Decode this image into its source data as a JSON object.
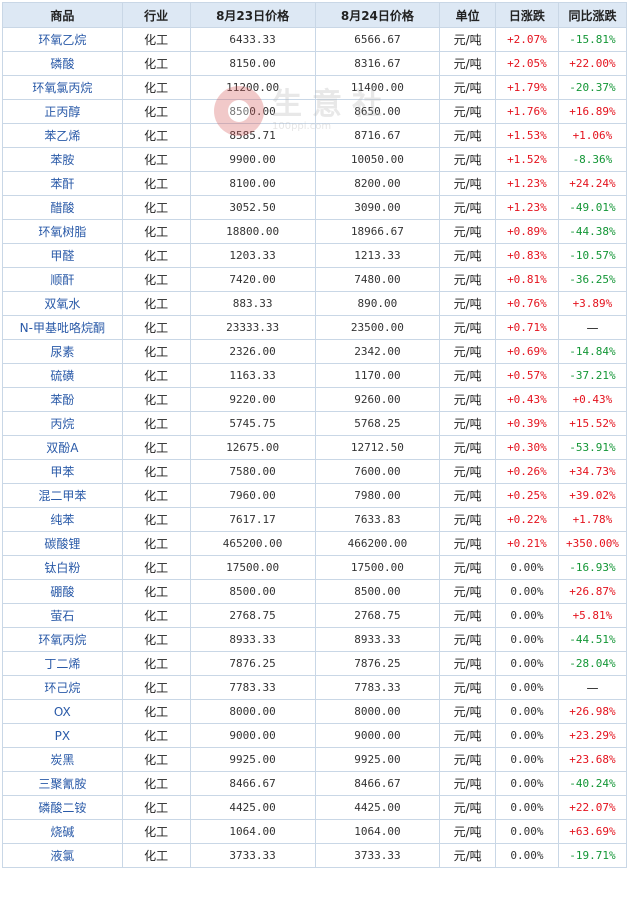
{
  "table": {
    "headers": [
      "商品",
      "行业",
      "8月23日价格",
      "8月24日价格",
      "单位",
      "日涨跌",
      "同比涨跌"
    ],
    "rows": [
      {
        "name": "环氧乙烷",
        "industry": "化工",
        "p1": "6433.33",
        "p2": "6566.67",
        "unit": "元/吨",
        "day": "+2.07%",
        "yoy": "-15.81%"
      },
      {
        "name": "磷酸",
        "industry": "化工",
        "p1": "8150.00",
        "p2": "8316.67",
        "unit": "元/吨",
        "day": "+2.05%",
        "yoy": "+22.00%"
      },
      {
        "name": "环氧氯丙烷",
        "industry": "化工",
        "p1": "11200.00",
        "p2": "11400.00",
        "unit": "元/吨",
        "day": "+1.79%",
        "yoy": "-20.37%"
      },
      {
        "name": "正丙醇",
        "industry": "化工",
        "p1": "8500.00",
        "p2": "8650.00",
        "unit": "元/吨",
        "day": "+1.76%",
        "yoy": "+16.89%"
      },
      {
        "name": "苯乙烯",
        "industry": "化工",
        "p1": "8585.71",
        "p2": "8716.67",
        "unit": "元/吨",
        "day": "+1.53%",
        "yoy": "+1.06%"
      },
      {
        "name": "苯胺",
        "industry": "化工",
        "p1": "9900.00",
        "p2": "10050.00",
        "unit": "元/吨",
        "day": "+1.52%",
        "yoy": "-8.36%"
      },
      {
        "name": "苯酐",
        "industry": "化工",
        "p1": "8100.00",
        "p2": "8200.00",
        "unit": "元/吨",
        "day": "+1.23%",
        "yoy": "+24.24%"
      },
      {
        "name": "醋酸",
        "industry": "化工",
        "p1": "3052.50",
        "p2": "3090.00",
        "unit": "元/吨",
        "day": "+1.23%",
        "yoy": "-49.01%"
      },
      {
        "name": "环氧树脂",
        "industry": "化工",
        "p1": "18800.00",
        "p2": "18966.67",
        "unit": "元/吨",
        "day": "+0.89%",
        "yoy": "-44.38%"
      },
      {
        "name": "甲醛",
        "industry": "化工",
        "p1": "1203.33",
        "p2": "1213.33",
        "unit": "元/吨",
        "day": "+0.83%",
        "yoy": "-10.57%"
      },
      {
        "name": "顺酐",
        "industry": "化工",
        "p1": "7420.00",
        "p2": "7480.00",
        "unit": "元/吨",
        "day": "+0.81%",
        "yoy": "-36.25%"
      },
      {
        "name": "双氧水",
        "industry": "化工",
        "p1": "883.33",
        "p2": "890.00",
        "unit": "元/吨",
        "day": "+0.76%",
        "yoy": "+3.89%"
      },
      {
        "name": "N-甲基吡咯烷酮",
        "industry": "化工",
        "p1": "23333.33",
        "p2": "23500.00",
        "unit": "元/吨",
        "day": "+0.71%",
        "yoy": "—"
      },
      {
        "name": "尿素",
        "industry": "化工",
        "p1": "2326.00",
        "p2": "2342.00",
        "unit": "元/吨",
        "day": "+0.69%",
        "yoy": "-14.84%"
      },
      {
        "name": "硫磺",
        "industry": "化工",
        "p1": "1163.33",
        "p2": "1170.00",
        "unit": "元/吨",
        "day": "+0.57%",
        "yoy": "-37.21%"
      },
      {
        "name": "苯酚",
        "industry": "化工",
        "p1": "9220.00",
        "p2": "9260.00",
        "unit": "元/吨",
        "day": "+0.43%",
        "yoy": "+0.43%"
      },
      {
        "name": "丙烷",
        "industry": "化工",
        "p1": "5745.75",
        "p2": "5768.25",
        "unit": "元/吨",
        "day": "+0.39%",
        "yoy": "+15.52%"
      },
      {
        "name": "双酚A",
        "industry": "化工",
        "p1": "12675.00",
        "p2": "12712.50",
        "unit": "元/吨",
        "day": "+0.30%",
        "yoy": "-53.91%"
      },
      {
        "name": "甲苯",
        "industry": "化工",
        "p1": "7580.00",
        "p2": "7600.00",
        "unit": "元/吨",
        "day": "+0.26%",
        "yoy": "+34.73%"
      },
      {
        "name": "混二甲苯",
        "industry": "化工",
        "p1": "7960.00",
        "p2": "7980.00",
        "unit": "元/吨",
        "day": "+0.25%",
        "yoy": "+39.02%"
      },
      {
        "name": "纯苯",
        "industry": "化工",
        "p1": "7617.17",
        "p2": "7633.83",
        "unit": "元/吨",
        "day": "+0.22%",
        "yoy": "+1.78%"
      },
      {
        "name": "碳酸锂",
        "industry": "化工",
        "p1": "465200.00",
        "p2": "466200.00",
        "unit": "元/吨",
        "day": "+0.21%",
        "yoy": "+350.00%"
      },
      {
        "name": "钛白粉",
        "industry": "化工",
        "p1": "17500.00",
        "p2": "17500.00",
        "unit": "元/吨",
        "day": "0.00%",
        "yoy": "-16.93%"
      },
      {
        "name": "硼酸",
        "industry": "化工",
        "p1": "8500.00",
        "p2": "8500.00",
        "unit": "元/吨",
        "day": "0.00%",
        "yoy": "+26.87%"
      },
      {
        "name": "萤石",
        "industry": "化工",
        "p1": "2768.75",
        "p2": "2768.75",
        "unit": "元/吨",
        "day": "0.00%",
        "yoy": "+5.81%"
      },
      {
        "name": "环氧丙烷",
        "industry": "化工",
        "p1": "8933.33",
        "p2": "8933.33",
        "unit": "元/吨",
        "day": "0.00%",
        "yoy": "-44.51%"
      },
      {
        "name": "丁二烯",
        "industry": "化工",
        "p1": "7876.25",
        "p2": "7876.25",
        "unit": "元/吨",
        "day": "0.00%",
        "yoy": "-28.04%"
      },
      {
        "name": "环己烷",
        "industry": "化工",
        "p1": "7783.33",
        "p2": "7783.33",
        "unit": "元/吨",
        "day": "0.00%",
        "yoy": "—"
      },
      {
        "name": "OX",
        "industry": "化工",
        "p1": "8000.00",
        "p2": "8000.00",
        "unit": "元/吨",
        "day": "0.00%",
        "yoy": "+26.98%"
      },
      {
        "name": "PX",
        "industry": "化工",
        "p1": "9000.00",
        "p2": "9000.00",
        "unit": "元/吨",
        "day": "0.00%",
        "yoy": "+23.29%"
      },
      {
        "name": "炭黑",
        "industry": "化工",
        "p1": "9925.00",
        "p2": "9925.00",
        "unit": "元/吨",
        "day": "0.00%",
        "yoy": "+23.68%"
      },
      {
        "name": "三聚氰胺",
        "industry": "化工",
        "p1": "8466.67",
        "p2": "8466.67",
        "unit": "元/吨",
        "day": "0.00%",
        "yoy": "-40.24%"
      },
      {
        "name": "磷酸二铵",
        "industry": "化工",
        "p1": "4425.00",
        "p2": "4425.00",
        "unit": "元/吨",
        "day": "0.00%",
        "yoy": "+22.07%"
      },
      {
        "name": "烧碱",
        "industry": "化工",
        "p1": "1064.00",
        "p2": "1064.00",
        "unit": "元/吨",
        "day": "0.00%",
        "yoy": "+63.69%"
      },
      {
        "name": "液氯",
        "industry": "化工",
        "p1": "3733.33",
        "p2": "3733.33",
        "unit": "元/吨",
        "day": "0.00%",
        "yoy": "-19.71%"
      }
    ]
  },
  "watermark": {
    "text": "生意社",
    "url": "100ppi.com"
  },
  "colors": {
    "header_bg": "#dde8f4",
    "border": "#c9d7e6",
    "name": "#2a5aa8",
    "up": "#e4121d",
    "down": "#139636"
  }
}
